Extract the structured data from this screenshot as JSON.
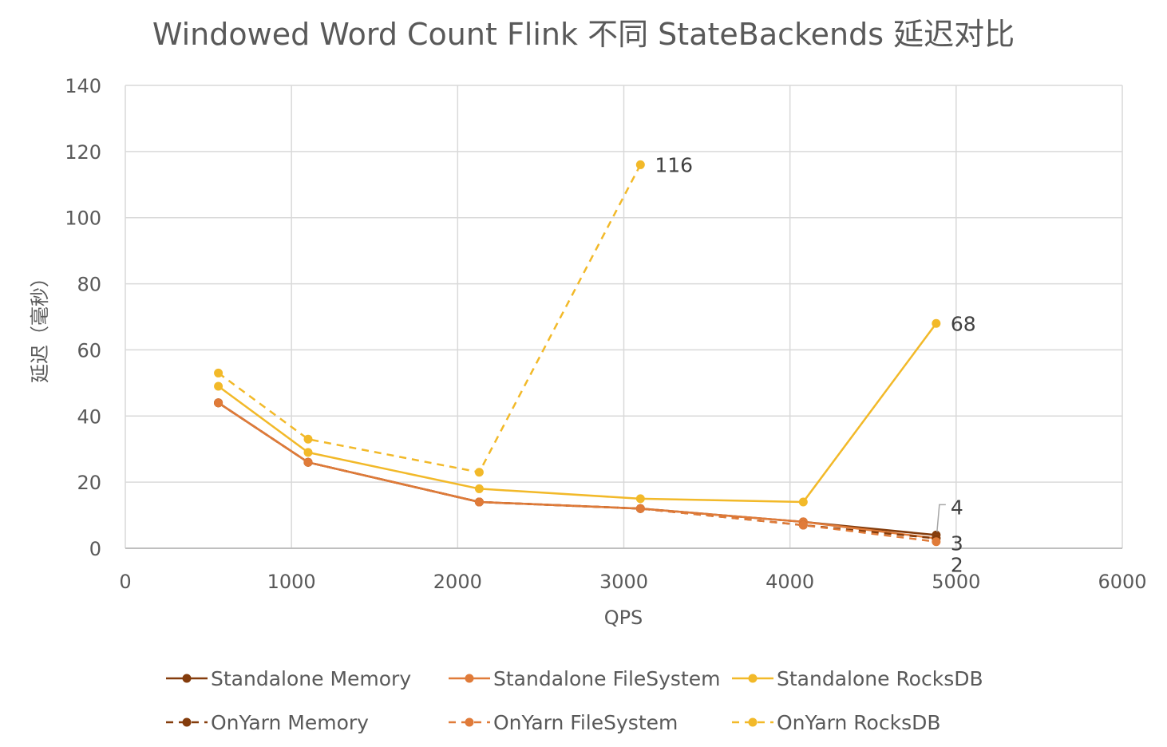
{
  "chart_data": {
    "type": "line",
    "title": "Windowed Word Count Flink 不同 StateBackends 延迟对比",
    "xlabel": "QPS",
    "ylabel": "延迟（毫秒）",
    "xlim": [
      0,
      6000
    ],
    "ylim": [
      0,
      140
    ],
    "xticks": [
      0,
      1000,
      2000,
      3000,
      4000,
      5000,
      6000
    ],
    "yticks": [
      0,
      20,
      40,
      60,
      80,
      100,
      120,
      140
    ],
    "grid": true,
    "legend_position": "bottom",
    "series": [
      {
        "name": "Standalone Memory",
        "color": "#843c0c",
        "dashed": false,
        "points": [
          [
            560,
            44
          ],
          [
            1100,
            26
          ],
          [
            2130,
            14
          ],
          [
            3100,
            12
          ],
          [
            4080,
            8
          ],
          [
            4880,
            4
          ]
        ]
      },
      {
        "name": "Standalone FileSystem",
        "color": "#e07b39",
        "dashed": false,
        "points": [
          [
            560,
            44
          ],
          [
            1100,
            26
          ],
          [
            2130,
            14
          ],
          [
            3100,
            12
          ],
          [
            4080,
            8
          ],
          [
            4880,
            3
          ]
        ]
      },
      {
        "name": "Standalone RocksDB",
        "color": "#f2b929",
        "dashed": false,
        "points": [
          [
            560,
            49
          ],
          [
            1100,
            29
          ],
          [
            2130,
            18
          ],
          [
            3100,
            15
          ],
          [
            4080,
            14
          ],
          [
            4880,
            68
          ]
        ]
      },
      {
        "name": "OnYarn Memory",
        "color": "#843c0c",
        "dashed": true,
        "points": [
          [
            560,
            44
          ],
          [
            1100,
            26
          ],
          [
            2130,
            14
          ],
          [
            3100,
            12
          ],
          [
            4080,
            7
          ],
          [
            4880,
            3
          ]
        ]
      },
      {
        "name": "OnYarn FileSystem",
        "color": "#e07b39",
        "dashed": true,
        "points": [
          [
            560,
            44
          ],
          [
            1100,
            26
          ],
          [
            2130,
            14
          ],
          [
            3100,
            12
          ],
          [
            4080,
            7
          ],
          [
            4880,
            2
          ]
        ]
      },
      {
        "name": "OnYarn RocksDB",
        "color": "#f2b929",
        "dashed": true,
        "points": [
          [
            560,
            53
          ],
          [
            1100,
            33
          ],
          [
            2130,
            23
          ],
          [
            3100,
            116
          ]
        ]
      }
    ],
    "data_labels": [
      {
        "text": "116",
        "x": 3100,
        "y": 116,
        "anchor": "right"
      },
      {
        "text": "68",
        "x": 4880,
        "y": 68,
        "anchor": "right"
      },
      {
        "text": "4",
        "x": 4880,
        "y": 4,
        "anchor": "callout-up"
      },
      {
        "text": "3",
        "x": 4880,
        "y": 3,
        "anchor": "right-below"
      },
      {
        "text": "2",
        "x": 4880,
        "y": 2,
        "anchor": "below"
      }
    ]
  }
}
